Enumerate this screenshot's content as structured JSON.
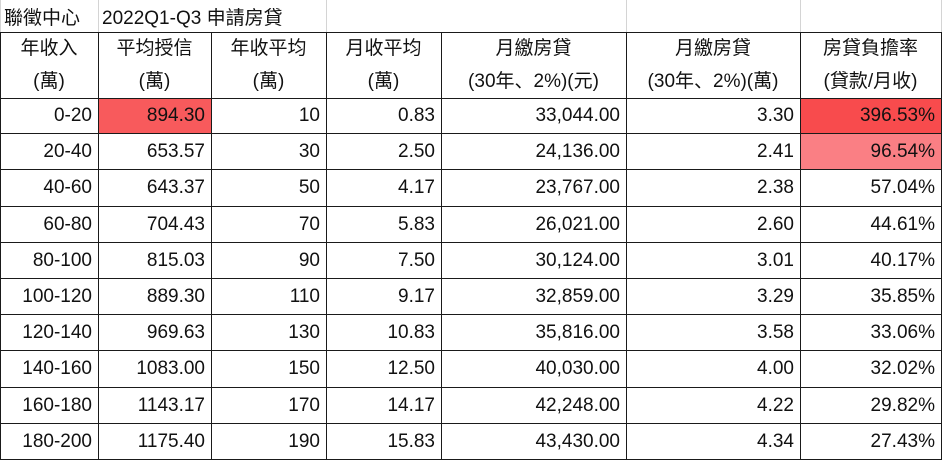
{
  "title_row": {
    "a1": "聯徵中心",
    "b1": "2022Q1-Q3 申請房貸"
  },
  "headers": [
    {
      "line1": "年收入",
      "line2": "(萬)"
    },
    {
      "line1": "平均授信",
      "line2": "(萬)"
    },
    {
      "line1": "年收平均",
      "line2": "(萬)"
    },
    {
      "line1": "月收平均",
      "line2": "(萬)"
    },
    {
      "line1": "月繳房貸",
      "line2": "(30年、2%)(元)"
    },
    {
      "line1": "月繳房貸",
      "line2": "(30年、2%)(萬)"
    },
    {
      "line1": "房貸負擔率",
      "line2": "(貸款/月收)"
    }
  ],
  "rows": [
    [
      "0-20",
      "894.30",
      "10",
      "0.83",
      "33,044.00",
      "3.30",
      "396.53%"
    ],
    [
      "20-40",
      "653.57",
      "30",
      "2.50",
      "24,136.00",
      "2.41",
      "96.54%"
    ],
    [
      "40-60",
      "643.37",
      "50",
      "4.17",
      "23,767.00",
      "2.38",
      "57.04%"
    ],
    [
      "60-80",
      "704.43",
      "70",
      "5.83",
      "26,021.00",
      "2.60",
      "44.61%"
    ],
    [
      "80-100",
      "815.03",
      "90",
      "7.50",
      "30,124.00",
      "3.01",
      "40.17%"
    ],
    [
      "100-120",
      "889.30",
      "110",
      "9.17",
      "32,859.00",
      "3.29",
      "35.85%"
    ],
    [
      "120-140",
      "969.63",
      "130",
      "10.83",
      "35,816.00",
      "3.58",
      "33.06%"
    ],
    [
      "140-160",
      "1083.00",
      "150",
      "12.50",
      "40,030.00",
      "4.00",
      "32.02%"
    ],
    [
      "160-180",
      "1143.17",
      "170",
      "14.17",
      "42,248.00",
      "4.22",
      "29.82%"
    ],
    [
      "180-200",
      "1175.40",
      "190",
      "15.83",
      "43,430.00",
      "4.34",
      "27.43%"
    ]
  ],
  "highlights": [
    {
      "row": 0,
      "col": 1,
      "color": "#f85a5c"
    },
    {
      "row": 0,
      "col": 6,
      "color": "#f84b4d"
    },
    {
      "row": 1,
      "col": 6,
      "color": "#fa7f84"
    }
  ]
}
